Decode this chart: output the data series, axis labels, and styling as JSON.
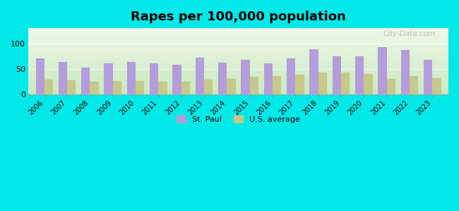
{
  "title": "Rapes per 100,000 population",
  "years": [
    2006,
    2007,
    2008,
    2009,
    2010,
    2011,
    2012,
    2013,
    2014,
    2015,
    2016,
    2017,
    2018,
    2019,
    2020,
    2021,
    2022,
    2023
  ],
  "st_paul": [
    70,
    63,
    52,
    60,
    64,
    60,
    58,
    72,
    62,
    67,
    61,
    70,
    88,
    74,
    74,
    93,
    87,
    67
  ],
  "us_avg": [
    28,
    27,
    25,
    26,
    26,
    25,
    25,
    29,
    30,
    34,
    36,
    38,
    42,
    42,
    40,
    30,
    36,
    32
  ],
  "st_paul_color": "#b39ddb",
  "us_avg_color": "#c5c98a",
  "bg_outer": "#00e8e8",
  "bg_plot_top": "#f0f8e8",
  "bg_plot_bottom": "#c8e8c0",
  "ylim": [
    0,
    130
  ],
  "yticks": [
    0,
    50,
    100
  ],
  "bar_width": 0.38,
  "legend_st_paul": "St. Paul",
  "legend_us": "U.S. average",
  "watermark": "City-Data.com"
}
